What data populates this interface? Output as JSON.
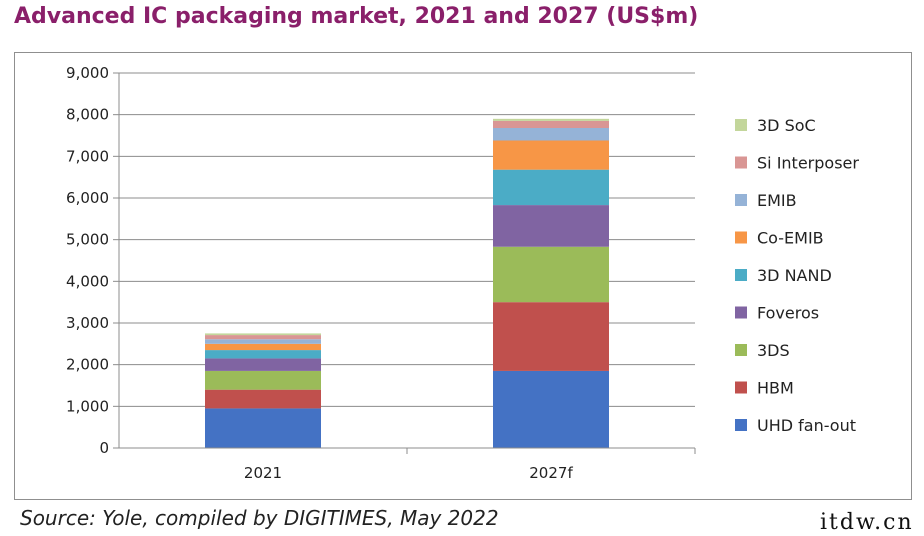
{
  "title": "Advanced IC packaging market, 2021 and 2027 (US$m)",
  "source": "Source: Yole, compiled by DIGITIMES, May 2022",
  "watermark": "itdw.cn",
  "chart_data": {
    "type": "bar",
    "stacked": true,
    "categories": [
      "2021",
      "2027f"
    ],
    "ylim": [
      0,
      9000
    ],
    "yticks": [
      "0",
      "1,000",
      "2,000",
      "3,000",
      "4,000",
      "5,000",
      "6,000",
      "7,000",
      "8,000",
      "9,000"
    ],
    "ytick_values": [
      0,
      1000,
      2000,
      3000,
      4000,
      5000,
      6000,
      7000,
      8000,
      9000
    ],
    "grid": true,
    "legend_position": "right",
    "series": [
      {
        "name": "UHD fan-out",
        "color": "#4472c4",
        "values": [
          950,
          1850
        ]
      },
      {
        "name": "HBM",
        "color": "#c0504d",
        "values": [
          450,
          1650
        ]
      },
      {
        "name": "3DS",
        "color": "#9bbb59",
        "values": [
          450,
          1330
        ]
      },
      {
        "name": "Foveros",
        "color": "#8064a2",
        "values": [
          300,
          1000
        ]
      },
      {
        "name": "3D NAND",
        "color": "#4bacc6",
        "values": [
          200,
          850
        ]
      },
      {
        "name": "Co-EMIB",
        "color": "#f79646",
        "values": [
          150,
          700
        ]
      },
      {
        "name": "EMIB",
        "color": "#95b3d7",
        "values": [
          110,
          300
        ]
      },
      {
        "name": "Si Interposer",
        "color": "#d99694",
        "values": [
          100,
          170
        ]
      },
      {
        "name": "3D SoC",
        "color": "#c3d69b",
        "values": [
          40,
          50
        ]
      }
    ]
  }
}
